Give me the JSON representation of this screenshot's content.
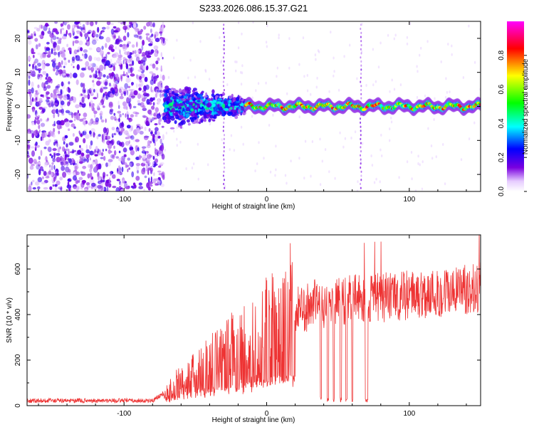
{
  "figure_title": "S233.2026.086.15.37.G21",
  "chart_data": [
    {
      "type": "heatmap",
      "title": "S233.2026.086.15.37.G21",
      "xlabel": "Height of straight line (km)",
      "ylabel": "Frequency (Hz)",
      "xlim": [
        -168,
        150
      ],
      "ylim": [
        -25,
        25
      ],
      "xticks": [
        -100,
        0,
        100
      ],
      "xtick_labels": [
        "-100",
        "0",
        "100"
      ],
      "yticks": [
        -20,
        -10,
        0,
        10,
        20
      ],
      "ytick_labels": [
        "-20",
        "-10",
        "0",
        "10",
        "20"
      ],
      "colorbar": {
        "label": "Normalized spectral amplitude",
        "range": [
          0,
          1
        ],
        "ticks": [
          0.0,
          0.2,
          0.4,
          0.6,
          0.8
        ],
        "tick_labels": [
          "0.0",
          "0.2",
          "0.4",
          "0.6",
          "0.8"
        ],
        "colors": [
          "#ffffff",
          "#7a00e0",
          "#0000ff",
          "#00ffff",
          "#00ff00",
          "#ffff00",
          "#ff0000",
          "#ff00ff"
        ]
      },
      "description_regions": [
        {
          "x_range": [
            -168,
            -72
          ],
          "y_range": [
            -25,
            25
          ],
          "pattern": "scattered noise",
          "amplitude": 0.15
        },
        {
          "x_range": [
            -72,
            -15
          ],
          "y_range": [
            -8,
            8
          ],
          "pattern": "dense cluster",
          "amplitude": 0.4
        },
        {
          "x_range": [
            -15,
            150
          ],
          "y_center": 0,
          "y_half_width": 1.5,
          "pattern": "narrow band",
          "amplitude": 0.85
        }
      ],
      "vertical_streaks_x": [
        -30,
        66
      ]
    },
    {
      "type": "line",
      "xlabel": "Height of straight line (km)",
      "ylabel": "SNR (10 * v/v)",
      "xlim": [
        -168,
        150
      ],
      "ylim": [
        0,
        750
      ],
      "xticks": [
        -100,
        0,
        100
      ],
      "xtick_labels": [
        "-100",
        "0",
        "100"
      ],
      "yticks": [
        0,
        200,
        400,
        600
      ],
      "ytick_labels": [
        "0",
        "200",
        "400",
        "600"
      ],
      "color": "#ee3333",
      "series": [
        {
          "name": "SNR",
          "trend_x": [
            -168,
            -80,
            -72,
            -60,
            -45,
            -30,
            -15,
            0,
            10,
            20,
            30,
            50,
            70,
            90,
            110,
            130,
            150
          ],
          "trend_y": [
            22,
            22,
            55,
            100,
            150,
            210,
            260,
            330,
            370,
            410,
            440,
            460,
            470,
            480,
            490,
            500,
            520
          ],
          "deep_dips_x": [
            38,
            43,
            47,
            52,
            56,
            60,
            70
          ]
        }
      ]
    }
  ]
}
